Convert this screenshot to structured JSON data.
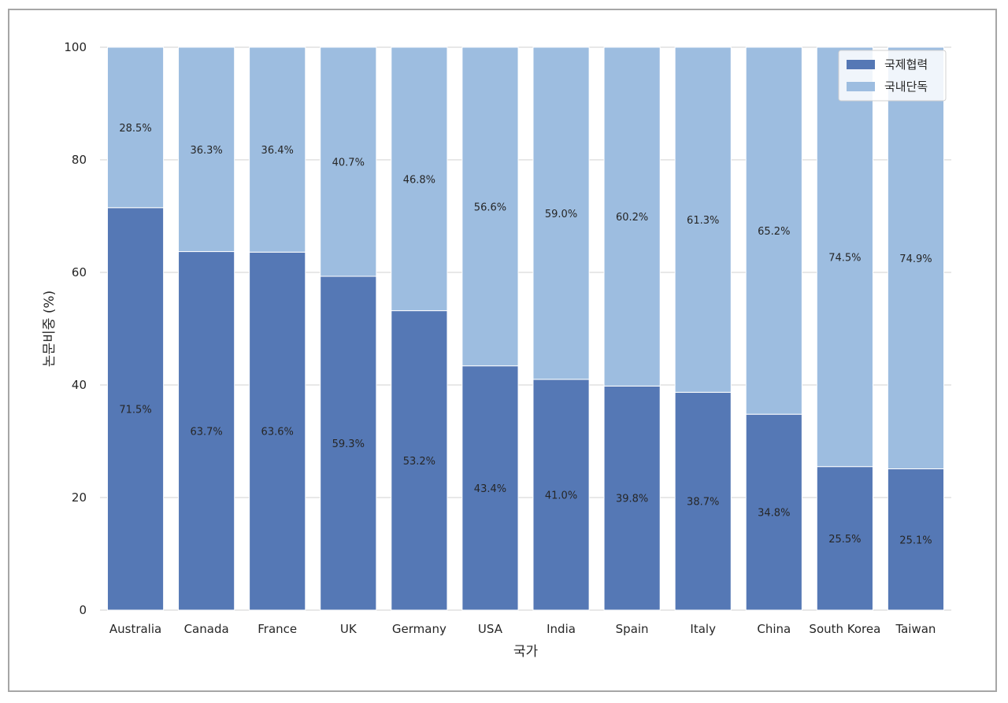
{
  "chart_data": {
    "type": "bar",
    "stacked": true,
    "title": "",
    "xlabel": "국가",
    "ylabel": "논문비중 (%)",
    "ylim": [
      0,
      100
    ],
    "yticks": [
      0,
      20,
      40,
      60,
      80,
      100
    ],
    "grid": true,
    "legend_position": "top-right",
    "categories": [
      "Australia",
      "Canada",
      "France",
      "UK",
      "Germany",
      "USA",
      "India",
      "Spain",
      "Italy",
      "China",
      "South Korea",
      "Taiwan"
    ],
    "series": [
      {
        "name": "국제협력",
        "color": "#5578b5",
        "values": [
          71.5,
          63.7,
          63.6,
          59.3,
          53.2,
          43.4,
          41.0,
          39.8,
          38.7,
          34.8,
          25.5,
          25.1
        ],
        "labels": [
          "71.5%",
          "63.7%",
          "63.6%",
          "59.3%",
          "53.2%",
          "43.4%",
          "41.0%",
          "39.8%",
          "38.7%",
          "34.8%",
          "25.5%",
          "25.1%"
        ]
      },
      {
        "name": "국내단독",
        "color": "#9dbde0",
        "values": [
          28.5,
          36.3,
          36.4,
          40.7,
          46.8,
          56.6,
          59.0,
          60.2,
          61.3,
          65.2,
          74.5,
          74.9
        ],
        "labels": [
          "28.5%",
          "36.3%",
          "36.4%",
          "40.7%",
          "46.8%",
          "56.6%",
          "59.0%",
          "60.2%",
          "61.3%",
          "65.2%",
          "74.5%",
          "74.9%"
        ]
      }
    ]
  }
}
